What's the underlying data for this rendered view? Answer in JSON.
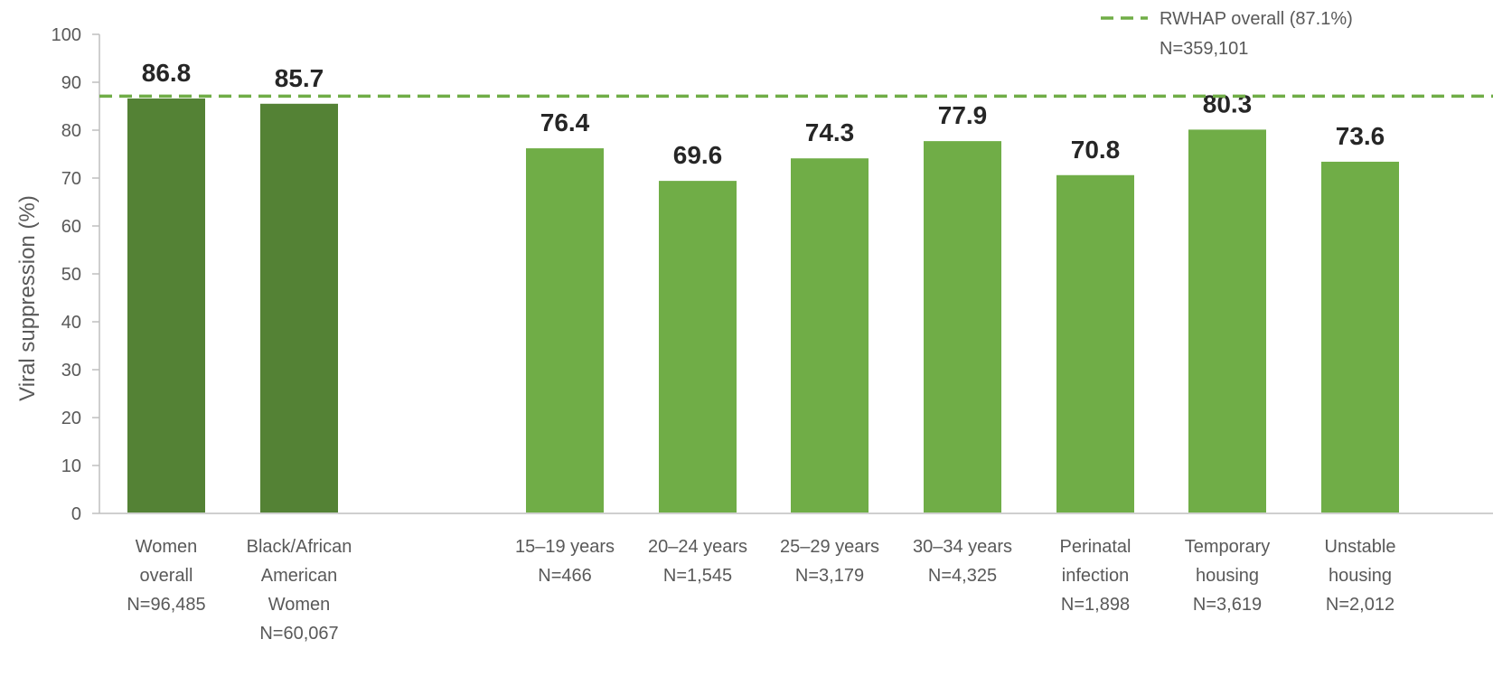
{
  "chart_data": {
    "type": "bar",
    "title": "",
    "xlabel": "",
    "ylabel": "Viral suppression (%)",
    "ylim": [
      0,
      100
    ],
    "yticks": [
      0,
      10,
      20,
      30,
      40,
      50,
      60,
      70,
      80,
      90,
      100
    ],
    "grid": false,
    "categories": [
      {
        "lines": [
          "Women",
          "overall",
          "N=96,485"
        ]
      },
      {
        "lines": [
          "Black/African",
          "American",
          "Women",
          "N=60,067"
        ]
      },
      {
        "lines": [
          "15–19 years",
          "N=466"
        ]
      },
      {
        "lines": [
          "20–24 years",
          "N=1,545"
        ]
      },
      {
        "lines": [
          "25–29 years",
          "N=3,179"
        ]
      },
      {
        "lines": [
          "30–34 years",
          "N=4,325"
        ]
      },
      {
        "lines": [
          "Perinatal",
          "infection",
          "N=1,898"
        ]
      },
      {
        "lines": [
          "Temporary",
          "housing",
          "N=3,619"
        ]
      },
      {
        "lines": [
          "Unstable",
          "housing",
          "N=2,012"
        ]
      }
    ],
    "values": [
      86.8,
      85.7,
      76.4,
      69.6,
      74.3,
      77.9,
      70.8,
      80.3,
      73.6
    ],
    "value_labels": [
      "86.8",
      "85.7",
      "76.4",
      "69.6",
      "74.3",
      "77.9",
      "70.8",
      "80.3",
      "73.6"
    ],
    "bar_colors": [
      "#548235",
      "#548235",
      "#70ad47",
      "#70ad47",
      "#70ad47",
      "#70ad47",
      "#70ad47",
      "#70ad47",
      "#70ad47"
    ],
    "reference_line": {
      "value": 87.1,
      "color": "#70ad47",
      "style": "dashed",
      "legend_lines": [
        "RWHAP overall (87.1%)",
        "N=359,101"
      ]
    },
    "legend_position": "top-right"
  }
}
